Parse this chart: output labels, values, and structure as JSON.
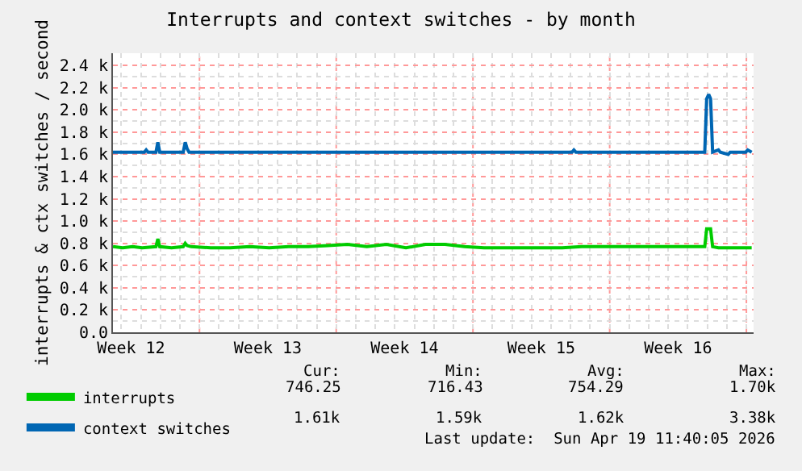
{
  "chart_data": {
    "type": "line",
    "title": "Interrupts and context switches - by month",
    "ylabel": "interrupts & ctx switches / second",
    "xlim": [
      "2026-03-17T13:40",
      "2026-04-19T08:50"
    ],
    "ylim": [
      0,
      2510
    ],
    "xticks": [
      {
        "value": "2026-03-18T12:00",
        "label": "Week 12"
      },
      {
        "value": "2026-03-22T00:00",
        "label": null
      },
      {
        "value": "2026-03-25T12:00",
        "label": "Week 13"
      },
      {
        "value": "2026-03-29T00:00",
        "label": null
      },
      {
        "value": "2026-04-01T12:00",
        "label": "Week 14"
      },
      {
        "value": "2026-04-05T00:00",
        "label": null
      },
      {
        "value": "2026-04-08T12:00",
        "label": "Week 15"
      },
      {
        "value": "2026-04-12T00:00",
        "label": null
      },
      {
        "value": "2026-04-15T12:00",
        "label": "Week 16"
      },
      {
        "value": "2026-04-19T00:00",
        "label": null
      }
    ],
    "yticks": [
      {
        "value": 0,
        "label": "0.0"
      },
      {
        "value": 200,
        "label": "0.2 k"
      },
      {
        "value": 400,
        "label": "0.4 k"
      },
      {
        "value": 600,
        "label": "0.6 k"
      },
      {
        "value": 800,
        "label": "0.8 k"
      },
      {
        "value": 1000,
        "label": "1.0 k"
      },
      {
        "value": 1200,
        "label": "1.2 k"
      },
      {
        "value": 1400,
        "label": "1.4 k"
      },
      {
        "value": 1600,
        "label": "1.6 k"
      },
      {
        "value": 1800,
        "label": "1.8 k"
      },
      {
        "value": 2000,
        "label": "2.0 k"
      },
      {
        "value": 2200,
        "label": "2.2 k"
      },
      {
        "value": 2400,
        "label": "2.4 k"
      }
    ],
    "grid": true,
    "legend": "bottom left",
    "series": [
      {
        "name": "interrupts",
        "color": "#00cc00",
        "x": [
          "2026-03-17T13:40",
          "2026-03-18T01:40",
          "2026-03-18T13:40",
          "2026-03-19T01:40",
          "2026-03-19T18:30",
          "2026-03-19T20:50",
          "2026-03-19T23:10",
          "2026-03-20T13:40",
          "2026-03-21T04:00",
          "2026-03-21T06:30",
          "2026-03-21T08:50",
          "2026-03-21T13:40",
          "2026-03-22T13:40",
          "2026-03-23T13:40",
          "2026-03-24T13:40",
          "2026-03-25T13:40",
          "2026-03-26T13:40",
          "2026-03-27T13:40",
          "2026-03-28T13:40",
          "2026-03-29T13:40",
          "2026-03-30T13:40",
          "2026-03-31T13:40",
          "2026-04-01T13:40",
          "2026-04-02T13:40",
          "2026-04-03T13:40",
          "2026-04-04T13:40",
          "2026-04-05T13:40",
          "2026-04-06T13:40",
          "2026-04-07T13:40",
          "2026-04-08T13:40",
          "2026-04-09T13:40",
          "2026-04-10T13:40",
          "2026-04-11T13:40",
          "2026-04-12T13:40",
          "2026-04-13T13:40",
          "2026-04-14T13:40",
          "2026-04-15T13:40",
          "2026-04-16T20:50",
          "2026-04-16T23:10",
          "2026-04-17T04:00",
          "2026-04-17T06:30",
          "2026-04-17T13:40",
          "2026-04-19T06:30"
        ],
        "values": [
          770,
          760,
          770,
          760,
          770,
          840,
          770,
          760,
          770,
          800,
          780,
          770,
          760,
          760,
          770,
          760,
          770,
          770,
          780,
          790,
          770,
          790,
          760,
          790,
          790,
          770,
          760,
          760,
          760,
          760,
          760,
          770,
          770,
          770,
          770,
          770,
          770,
          770,
          930,
          930,
          770,
          760,
          760
        ]
      },
      {
        "name": "context switches",
        "color": "#0066b3",
        "x": [
          "2026-03-17T13:40",
          "2026-03-19T04:10",
          "2026-03-19T06:30",
          "2026-03-19T08:50",
          "2026-03-19T18:30",
          "2026-03-19T20:50",
          "2026-03-19T23:10",
          "2026-03-21T04:00",
          "2026-03-21T06:30",
          "2026-03-21T08:50",
          "2026-03-21T11:10",
          "2026-04-10T01:40",
          "2026-04-10T04:00",
          "2026-04-10T06:30",
          "2026-04-16T20:50",
          "2026-04-16T23:10",
          "2026-04-17T01:40",
          "2026-04-17T04:00",
          "2026-04-17T06:30",
          "2026-04-17T13:40",
          "2026-04-17T16:00",
          "2026-04-18T01:40",
          "2026-04-18T04:00",
          "2026-04-18T23:10",
          "2026-04-19T01:40",
          "2026-04-19T06:30"
        ],
        "values": [
          1620,
          1620,
          1640,
          1620,
          1620,
          1710,
          1620,
          1620,
          1710,
          1650,
          1620,
          1620,
          1640,
          1620,
          1620,
          2100,
          2140,
          2100,
          1620,
          1640,
          1620,
          1600,
          1620,
          1620,
          1640,
          1620
        ]
      }
    ],
    "annotations": [
      "Cur:",
      "Min:",
      "Avg:",
      "Max:",
      "746.25",
      "716.43",
      "754.29",
      "1.70k",
      "1.61k",
      "1.59k",
      "1.62k",
      "3.38k",
      "Last update:  Sun Apr 19 11:40:05 2026"
    ]
  }
}
